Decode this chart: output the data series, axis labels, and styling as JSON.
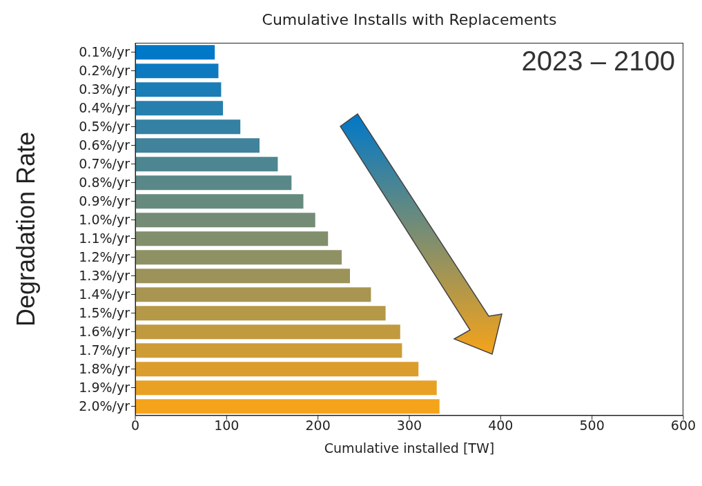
{
  "chart_data": {
    "type": "bar",
    "orientation": "horizontal",
    "title": "Cumulative Installs with Replacements",
    "xlabel": "Cumulative installed [TW]",
    "ylabel": "Degradation Rate",
    "annotations": [
      "2023 – 2100"
    ],
    "categories": [
      "0.1%/yr",
      "0.2%/yr",
      "0.3%/yr",
      "0.4%/yr",
      "0.5%/yr",
      "0.6%/yr",
      "0.7%/yr",
      "0.8%/yr",
      "0.9%/yr",
      "1.0%/yr",
      "1.1%/yr",
      "1.2%/yr",
      "1.3%/yr",
      "1.4%/yr",
      "1.5%/yr",
      "1.6%/yr",
      "1.7%/yr",
      "1.8%/yr",
      "1.9%/yr",
      "2.0%/yr"
    ],
    "values": [
      87,
      91,
      94,
      96,
      115,
      136,
      156,
      171,
      184,
      197,
      211,
      226,
      235,
      258,
      274,
      290,
      292,
      310,
      330,
      333
    ],
    "colors": [
      "#0078c8",
      "#0d7abf",
      "#1a7db6",
      "#277fad",
      "#3481a3",
      "#40839a",
      "#4d8691",
      "#5a8888",
      "#678a7f",
      "#748c76",
      "#818f6c",
      "#8e9163",
      "#9b935a",
      "#a89551",
      "#b59848",
      "#c19a3f",
      "#ce9c35",
      "#db9e2c",
      "#e8a123",
      "#f5a31a"
    ],
    "xlim": [
      0,
      600
    ],
    "xticks": [
      0,
      100,
      200,
      300,
      400,
      500,
      600
    ],
    "grid": false
  }
}
